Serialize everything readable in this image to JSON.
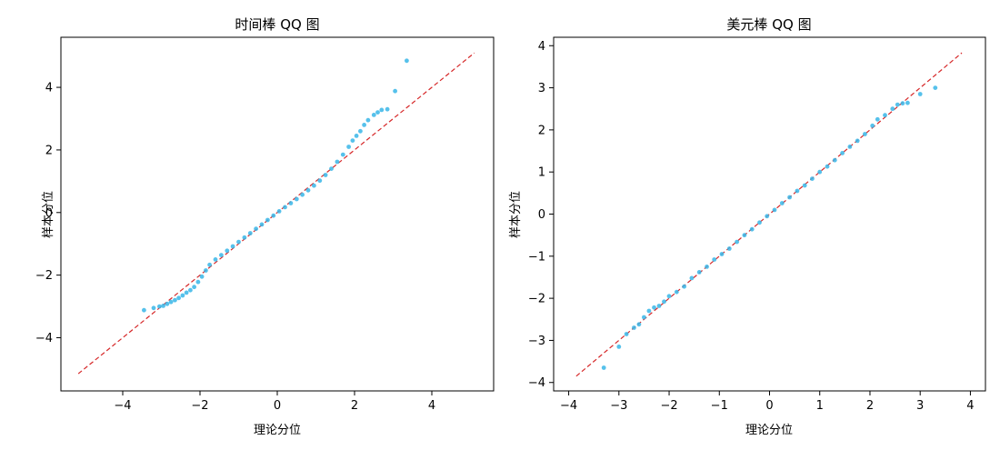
{
  "chart_data": [
    {
      "type": "scatter",
      "title": "时间棒 QQ 图",
      "xlabel": "理论分位",
      "ylabel": "样本分位",
      "xlim": [
        -5.6,
        5.6
      ],
      "ylim": [
        -5.7,
        5.6
      ],
      "xticks": [
        -4,
        -2,
        0,
        2,
        4
      ],
      "yticks": [
        -4,
        -2,
        0,
        2,
        4
      ],
      "xtick_labels": [
        "−4",
        "−2",
        "0",
        "2",
        "4"
      ],
      "ytick_labels": [
        "−4",
        "−2",
        "0",
        "2",
        "4"
      ],
      "reference_line": [
        [
          -5.15,
          -5.15
        ],
        [
          5.1,
          5.1
        ]
      ],
      "points": [
        [
          -3.45,
          -3.12
        ],
        [
          -3.2,
          -3.05
        ],
        [
          -3.05,
          -3.0
        ],
        [
          -2.95,
          -2.98
        ],
        [
          -2.85,
          -2.92
        ],
        [
          -2.75,
          -2.86
        ],
        [
          -2.65,
          -2.8
        ],
        [
          -2.55,
          -2.73
        ],
        [
          -2.45,
          -2.65
        ],
        [
          -2.35,
          -2.56
        ],
        [
          -2.25,
          -2.48
        ],
        [
          -2.15,
          -2.38
        ],
        [
          -2.05,
          -2.22
        ],
        [
          -1.95,
          -2.05
        ],
        [
          -1.85,
          -1.85
        ],
        [
          -1.75,
          -1.67
        ],
        [
          -1.6,
          -1.5
        ],
        [
          -1.45,
          -1.36
        ],
        [
          -1.3,
          -1.22
        ],
        [
          -1.15,
          -1.08
        ],
        [
          -1.0,
          -0.94
        ],
        [
          -0.85,
          -0.8
        ],
        [
          -0.7,
          -0.66
        ],
        [
          -0.55,
          -0.52
        ],
        [
          -0.4,
          -0.38
        ],
        [
          -0.25,
          -0.24
        ],
        [
          -0.1,
          -0.1
        ],
        [
          0.05,
          0.04
        ],
        [
          0.2,
          0.17
        ],
        [
          0.35,
          0.3
        ],
        [
          0.5,
          0.43
        ],
        [
          0.65,
          0.57
        ],
        [
          0.8,
          0.71
        ],
        [
          0.95,
          0.86
        ],
        [
          1.1,
          1.02
        ],
        [
          1.25,
          1.2
        ],
        [
          1.4,
          1.4
        ],
        [
          1.55,
          1.62
        ],
        [
          1.7,
          1.85
        ],
        [
          1.85,
          2.1
        ],
        [
          1.95,
          2.3
        ],
        [
          2.05,
          2.45
        ],
        [
          2.15,
          2.6
        ],
        [
          2.25,
          2.8
        ],
        [
          2.35,
          2.95
        ],
        [
          2.5,
          3.12
        ],
        [
          2.6,
          3.2
        ],
        [
          2.7,
          3.28
        ],
        [
          2.85,
          3.3
        ],
        [
          3.05,
          3.88
        ],
        [
          3.35,
          4.85
        ]
      ]
    },
    {
      "type": "scatter",
      "title": "美元棒 QQ 图",
      "xlabel": "理论分位",
      "ylabel": "样本分位",
      "xlim": [
        -4.3,
        4.3
      ],
      "ylim": [
        -4.2,
        4.2
      ],
      "xticks": [
        -4,
        -3,
        -2,
        -1,
        0,
        1,
        2,
        3,
        4
      ],
      "yticks": [
        -4,
        -3,
        -2,
        -1,
        0,
        1,
        2,
        3,
        4
      ],
      "xtick_labels": [
        "−4",
        "−3",
        "−2",
        "−1",
        "0",
        "1",
        "2",
        "3",
        "4"
      ],
      "ytick_labels": [
        "−4",
        "−3",
        "−2",
        "−1",
        "0",
        "1",
        "2",
        "3",
        "4"
      ],
      "reference_line": [
        [
          -3.85,
          -3.85
        ],
        [
          3.83,
          3.83
        ]
      ],
      "points": [
        [
          -3.3,
          -3.65
        ],
        [
          -3.0,
          -3.15
        ],
        [
          -2.85,
          -2.85
        ],
        [
          -2.7,
          -2.7
        ],
        [
          -2.6,
          -2.62
        ],
        [
          -2.5,
          -2.45
        ],
        [
          -2.4,
          -2.3
        ],
        [
          -2.3,
          -2.22
        ],
        [
          -2.2,
          -2.18
        ],
        [
          -2.1,
          -2.08
        ],
        [
          -2.0,
          -1.95
        ],
        [
          -1.85,
          -1.85
        ],
        [
          -1.7,
          -1.72
        ],
        [
          -1.55,
          -1.52
        ],
        [
          -1.4,
          -1.38
        ],
        [
          -1.25,
          -1.25
        ],
        [
          -1.1,
          -1.08
        ],
        [
          -0.95,
          -0.95
        ],
        [
          -0.8,
          -0.82
        ],
        [
          -0.65,
          -0.66
        ],
        [
          -0.5,
          -0.5
        ],
        [
          -0.35,
          -0.36
        ],
        [
          -0.2,
          -0.2
        ],
        [
          -0.05,
          -0.05
        ],
        [
          0.1,
          0.1
        ],
        [
          0.25,
          0.26
        ],
        [
          0.4,
          0.4
        ],
        [
          0.55,
          0.55
        ],
        [
          0.7,
          0.68
        ],
        [
          0.85,
          0.84
        ],
        [
          1.0,
          1.0
        ],
        [
          1.15,
          1.13
        ],
        [
          1.3,
          1.28
        ],
        [
          1.45,
          1.45
        ],
        [
          1.6,
          1.6
        ],
        [
          1.75,
          1.74
        ],
        [
          1.9,
          1.9
        ],
        [
          2.05,
          2.1
        ],
        [
          2.15,
          2.25
        ],
        [
          2.3,
          2.35
        ],
        [
          2.45,
          2.5
        ],
        [
          2.55,
          2.6
        ],
        [
          2.65,
          2.63
        ],
        [
          2.75,
          2.64
        ],
        [
          3.0,
          2.85
        ],
        [
          3.3,
          3.0
        ]
      ]
    }
  ],
  "colors": {
    "points": "#38b6e8",
    "reference_line": "#d62728",
    "axis": "#000000"
  }
}
